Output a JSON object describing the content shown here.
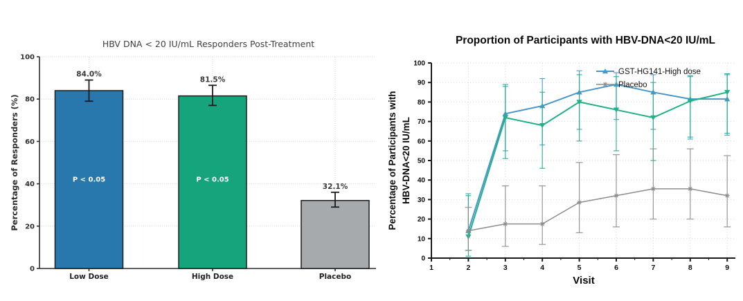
{
  "page": {
    "background": "#ffffff"
  },
  "chart_data": [
    {
      "type": "bar",
      "title": "HBV DNA < 20 IU/mL Responders Post-Treatment",
      "ylabel": "Percentage of Responders (%)",
      "xlabel": "",
      "categories": [
        "Low Dose",
        "High Dose",
        "Placebo"
      ],
      "values": [
        84.0,
        81.5,
        32.1
      ],
      "value_labels": [
        "84.0%",
        "81.5%",
        "32.1%"
      ],
      "err_lo": [
        79,
        77,
        29
      ],
      "err_hi": [
        89,
        86.5,
        36
      ],
      "bar_annotations": [
        "P < 0.05",
        "P < 0.05",
        null
      ],
      "bar_colors": [
        "#2878ad",
        "#16a47c",
        "#a6aaad"
      ],
      "bar_edge_color": "#1c1c1c",
      "errorbar_color": "#1a1a1a",
      "grid_color": "#d4d4d4",
      "axis_color": "#2f2f2f",
      "ylim": [
        0,
        100
      ],
      "yticks": [
        0,
        20,
        40,
        60,
        80,
        100
      ],
      "grid": "horizontal and vertical dotted",
      "legend_position": "none"
    },
    {
      "type": "line",
      "title": "Proportion of Participants with HBV-DNA<20 IU/mL",
      "ylabel": "Percentage of Participants with HBV-DNA<20 IU/mL",
      "ylabel_lines": [
        "Percentage of Participants with",
        "HBV-DNA<20 IU/mL"
      ],
      "xlabel": "Visit",
      "xlim": [
        1,
        9
      ],
      "xticks": [
        1,
        2,
        3,
        4,
        5,
        6,
        7,
        8,
        9
      ],
      "ylim": [
        0,
        100
      ],
      "yticks": [
        0,
        10,
        20,
        30,
        40,
        50,
        60,
        70,
        80,
        90,
        100
      ],
      "grid": "horizontal and vertical dotted",
      "grid_color": "#d6d6d6",
      "axis_color": "#1a1a1a",
      "legend_position": "top right inside plot, no frame",
      "x": [
        2,
        3,
        4,
        5,
        6,
        7,
        8,
        9
      ],
      "series": [
        {
          "name": "GST-HG141-High dose",
          "legend_label": "GST-HG141-High dose",
          "color": "#4b96c8",
          "marker": "triangle-up",
          "y": [
            14,
            74,
            78,
            85,
            89,
            85,
            81.5,
            81.5
          ],
          "err_lo": [
            4,
            55,
            58,
            66,
            71,
            66,
            61,
            63
          ],
          "err_hi": [
            33,
            88,
            92,
            96,
            95,
            94,
            93,
            94
          ]
        },
        {
          "name": "",
          "legend_label": null,
          "color": "#21b189",
          "marker": "triangle-down",
          "y": [
            11,
            72,
            68,
            80,
            76,
            72,
            80.5,
            85
          ],
          "err_lo": [
            1,
            51,
            46,
            60,
            55,
            50,
            62,
            64
          ],
          "err_hi": [
            32,
            89,
            85,
            94,
            93,
            90,
            93.5,
            94.5
          ]
        },
        {
          "name": "Placebo",
          "legend_label": "Placebo",
          "color": "#8c8c8c",
          "marker": "star",
          "y": [
            14,
            17.5,
            17.5,
            28.5,
            32,
            35.5,
            35.5,
            32
          ],
          "err_lo": [
            4,
            6,
            7,
            13,
            16,
            20,
            20,
            16
          ],
          "err_hi": [
            26,
            37,
            37,
            49,
            53,
            56,
            56,
            52.5
          ]
        }
      ]
    }
  ]
}
